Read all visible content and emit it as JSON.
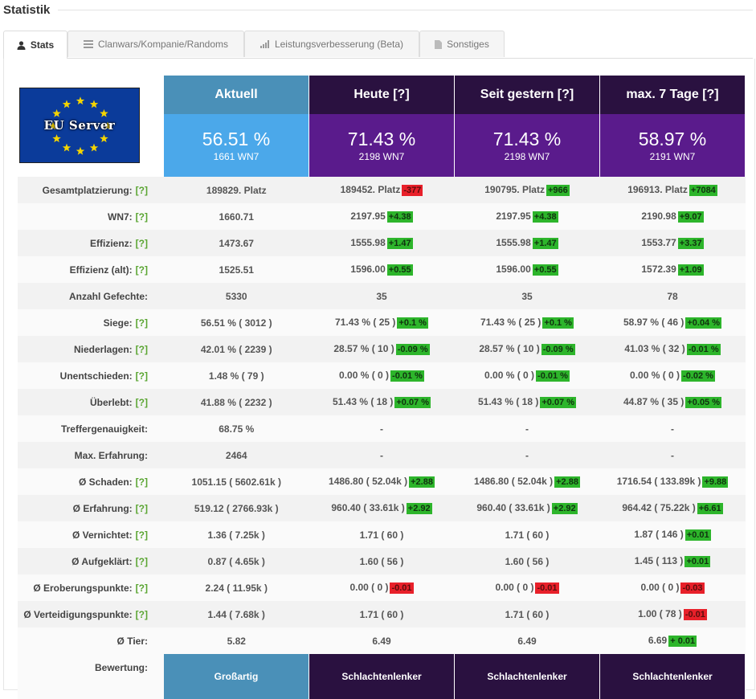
{
  "page": {
    "title": "Statistik"
  },
  "tabs": [
    {
      "label": "Stats",
      "icon": "user-icon"
    },
    {
      "label": "Clanwars/Kompanie/Randoms",
      "icon": "list-icon"
    },
    {
      "label": "Leistungsverbesserung (Beta)",
      "icon": "bar-chart-icon"
    },
    {
      "label": "Sonstiges",
      "icon": "document-icon"
    }
  ],
  "flag": {
    "label": "EU Server"
  },
  "columns": [
    {
      "header": "Aktuell",
      "pct": "56.51 %",
      "wn7": "1661 WN7",
      "rating": "Großartig"
    },
    {
      "header": "Heute [?]",
      "pct": "71.43 %",
      "wn7": "2198 WN7",
      "rating": "Schlachtenlenker"
    },
    {
      "header": "Seit gestern [?]",
      "pct": "71.43 %",
      "wn7": "2198 WN7",
      "rating": "Schlachtenlenker"
    },
    {
      "header": "max. 7 Tage [?]",
      "pct": "58.97 %",
      "wn7": "2191 WN7",
      "rating": "Schlachtenlenker"
    }
  ],
  "rating_label": "Bewertung:",
  "colors": {
    "positive": "#2db52b",
    "negative": "#e8202a",
    "aktuell_header": "#4a90b8",
    "dark_header": "#2a1140",
    "purple": "#5a1b8c",
    "blue": "#4ba8ea",
    "help": "#5aa532"
  },
  "rows": [
    {
      "label": "Gesamtplatzierung:",
      "help": "[?]",
      "cells": [
        {
          "v": "189829. Platz"
        },
        {
          "v": "189452. Platz",
          "d": "-377",
          "s": "neg"
        },
        {
          "v": "190795. Platz",
          "d": "+966",
          "s": "pos"
        },
        {
          "v": "196913. Platz",
          "d": "+7084",
          "s": "pos"
        }
      ]
    },
    {
      "label": "WN7:",
      "help": "[?]",
      "cells": [
        {
          "v": "1660.71"
        },
        {
          "v": "2197.95",
          "d": "+4.38",
          "s": "pos"
        },
        {
          "v": "2197.95",
          "d": "+4.38",
          "s": "pos"
        },
        {
          "v": "2190.98",
          "d": "+9.07",
          "s": "pos"
        }
      ]
    },
    {
      "label": "Effizienz:",
      "help": "[?]",
      "cells": [
        {
          "v": "1473.67"
        },
        {
          "v": "1555.98",
          "d": "+1.47",
          "s": "pos"
        },
        {
          "v": "1555.98",
          "d": "+1.47",
          "s": "pos"
        },
        {
          "v": "1553.77",
          "d": "+3.37",
          "s": "pos"
        }
      ]
    },
    {
      "label": "Effizienz (alt):",
      "help": "[?]",
      "cells": [
        {
          "v": "1525.51"
        },
        {
          "v": "1596.00",
          "d": "+0.55",
          "s": "pos"
        },
        {
          "v": "1596.00",
          "d": "+0.55",
          "s": "pos"
        },
        {
          "v": "1572.39",
          "d": "+1.09",
          "s": "pos"
        }
      ]
    },
    {
      "label": "Anzahl Gefechte:",
      "help": "",
      "cells": [
        {
          "v": "5330"
        },
        {
          "v": "35"
        },
        {
          "v": "35"
        },
        {
          "v": "78"
        }
      ]
    },
    {
      "label": "Siege:",
      "help": "[?]",
      "cells": [
        {
          "v": "56.51 % ( 3012 )"
        },
        {
          "v": "71.43 % ( 25 )",
          "d": "+0.1 %",
          "s": "pos"
        },
        {
          "v": "71.43 % ( 25 )",
          "d": "+0.1 %",
          "s": "pos"
        },
        {
          "v": "58.97 % ( 46 )",
          "d": "+0.04 %",
          "s": "pos"
        }
      ]
    },
    {
      "label": "Niederlagen:",
      "help": "[?]",
      "cells": [
        {
          "v": "42.01 % ( 2239 )"
        },
        {
          "v": "28.57 % ( 10 )",
          "d": "-0.09 %",
          "s": "pos"
        },
        {
          "v": "28.57 % ( 10 )",
          "d": "-0.09 %",
          "s": "pos"
        },
        {
          "v": "41.03 % ( 32 )",
          "d": "-0.01 %",
          "s": "pos"
        }
      ]
    },
    {
      "label": "Unentschieden:",
      "help": "[?]",
      "cells": [
        {
          "v": "1.48 % ( 79 )"
        },
        {
          "v": "0.00 % ( 0 )",
          "d": "-0.01 %",
          "s": "pos"
        },
        {
          "v": "0.00 % ( 0 )",
          "d": "-0.01 %",
          "s": "pos"
        },
        {
          "v": "0.00 % ( 0 )",
          "d": "-0.02 %",
          "s": "pos"
        }
      ]
    },
    {
      "label": "Überlebt:",
      "help": "[?]",
      "cells": [
        {
          "v": "41.88 % ( 2232 )"
        },
        {
          "v": "51.43 % ( 18 )",
          "d": "+0.07 %",
          "s": "pos"
        },
        {
          "v": "51.43 % ( 18 )",
          "d": "+0.07 %",
          "s": "pos"
        },
        {
          "v": "44.87 % ( 35 )",
          "d": "+0.05 %",
          "s": "pos"
        }
      ]
    },
    {
      "label": "Treffergenauigkeit:",
      "help": "",
      "cells": [
        {
          "v": "68.75 %"
        },
        {
          "v": "-",
          "muted": true
        },
        {
          "v": "-",
          "muted": true
        },
        {
          "v": "-",
          "muted": true
        }
      ]
    },
    {
      "label": "Max. Erfahrung:",
      "help": "",
      "cells": [
        {
          "v": "2464"
        },
        {
          "v": "-",
          "muted": true
        },
        {
          "v": "-",
          "muted": true
        },
        {
          "v": "-",
          "muted": true
        }
      ]
    },
    {
      "label": "Ø Schaden:",
      "help": "[?]",
      "cells": [
        {
          "v": "1051.15 ( 5602.61k )"
        },
        {
          "v": "1486.80 ( 52.04k )",
          "d": "+2.88",
          "s": "pos"
        },
        {
          "v": "1486.80 ( 52.04k )",
          "d": "+2.88",
          "s": "pos"
        },
        {
          "v": "1716.54 ( 133.89k )",
          "d": "+9.88",
          "s": "pos"
        }
      ]
    },
    {
      "label": "Ø Erfahrung:",
      "help": "[?]",
      "cells": [
        {
          "v": "519.12 ( 2766.93k )"
        },
        {
          "v": "960.40 ( 33.61k )",
          "d": "+2.92",
          "s": "pos"
        },
        {
          "v": "960.40 ( 33.61k )",
          "d": "+2.92",
          "s": "pos"
        },
        {
          "v": "964.42 ( 75.22k )",
          "d": "+6.61",
          "s": "pos"
        }
      ]
    },
    {
      "label": "Ø Vernichtet:",
      "help": "[?]",
      "cells": [
        {
          "v": "1.36 ( 7.25k )"
        },
        {
          "v": "1.71 ( 60 )"
        },
        {
          "v": "1.71 ( 60 )"
        },
        {
          "v": "1.87 ( 146 )",
          "d": "+0.01",
          "s": "pos"
        }
      ]
    },
    {
      "label": "Ø Aufgeklärt:",
      "help": "[?]",
      "cells": [
        {
          "v": "0.87 ( 4.65k )"
        },
        {
          "v": "1.60 ( 56 )"
        },
        {
          "v": "1.60 ( 56 )"
        },
        {
          "v": "1.45 ( 113 )",
          "d": "+0.01",
          "s": "pos"
        }
      ]
    },
    {
      "label": "Ø Eroberungspunkte:",
      "help": "[?]",
      "cells": [
        {
          "v": "2.24 ( 11.95k )"
        },
        {
          "v": "0.00 ( 0 )",
          "d": "-0.01",
          "s": "neg"
        },
        {
          "v": "0.00 ( 0 )",
          "d": "-0.01",
          "s": "neg"
        },
        {
          "v": "0.00 ( 0 )",
          "d": "-0.03",
          "s": "neg"
        }
      ]
    },
    {
      "label": "Ø Verteidigungspunkte:",
      "help": "[?]",
      "cells": [
        {
          "v": "1.44 ( 7.68k )"
        },
        {
          "v": "1.71 ( 60 )"
        },
        {
          "v": "1.71 ( 60 )"
        },
        {
          "v": "1.00 ( 78 )",
          "d": "-0.01",
          "s": "neg"
        }
      ]
    },
    {
      "label": "Ø Tier:",
      "help": "",
      "cells": [
        {
          "v": "5.82"
        },
        {
          "v": "6.49"
        },
        {
          "v": "6.49"
        },
        {
          "v": "6.69",
          "d": "+ 0.01",
          "s": "pos"
        }
      ]
    }
  ]
}
